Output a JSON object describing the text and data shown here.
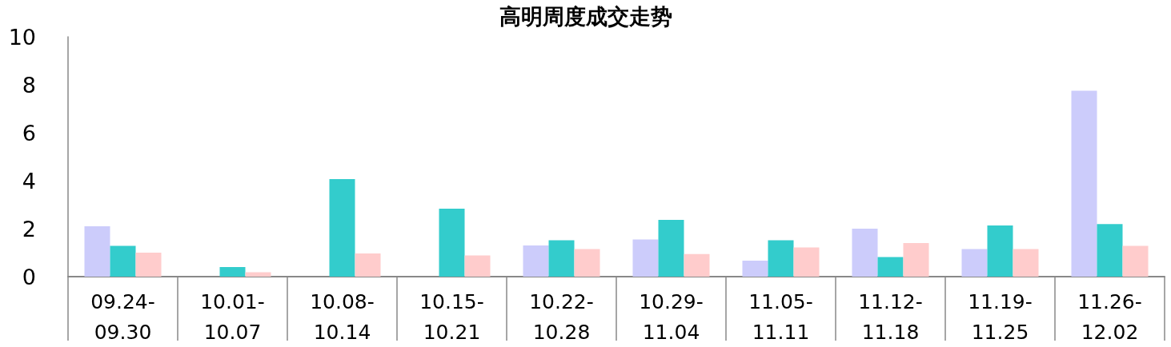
{
  "chart_data": {
    "type": "bar",
    "title": "高明周度成交走势",
    "categories": [
      "09.24-09.30",
      "10.01-10.07",
      "10.08-10.14",
      "10.15-10.21",
      "10.22-10.28",
      "10.29-11.04",
      "11.05-11.11",
      "11.12-11.18",
      "11.19-11.25",
      "11.26-12.02"
    ],
    "series": [
      {
        "color": "#ccccfb",
        "values": [
          2.1,
          0,
          0,
          0,
          1.3,
          1.55,
          0.67,
          2.0,
          1.15,
          7.75
        ]
      },
      {
        "color": "#33cccc",
        "values": [
          1.28,
          0.4,
          4.07,
          2.83,
          1.52,
          2.37,
          1.52,
          0.82,
          2.13,
          2.19
        ]
      },
      {
        "color": "#ffcccc",
        "values": [
          1.0,
          0.18,
          0.97,
          0.88,
          1.15,
          0.94,
          1.22,
          1.4,
          1.15,
          1.28
        ]
      }
    ],
    "ylim": [
      0,
      10
    ],
    "yticks": [
      0,
      2,
      4,
      6,
      8,
      10
    ],
    "grid": false
  }
}
